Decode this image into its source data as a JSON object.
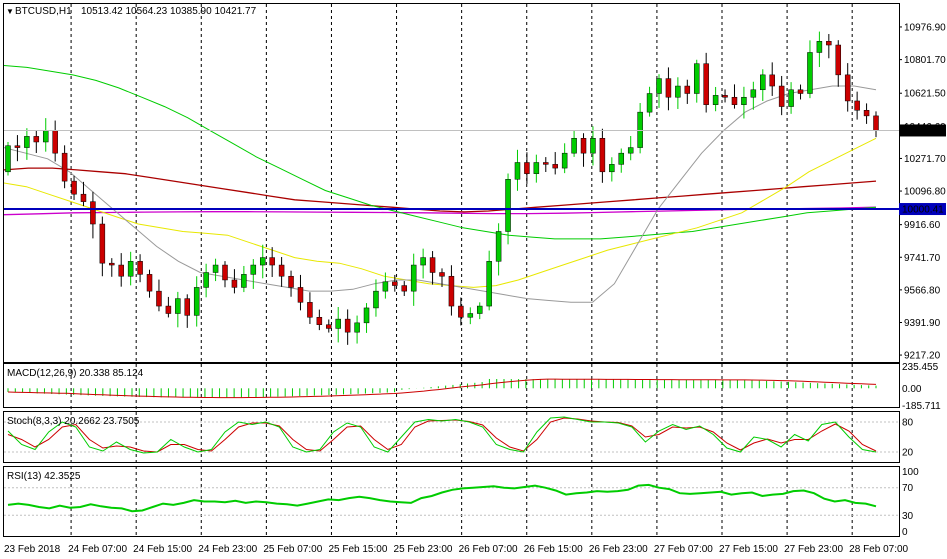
{
  "header": {
    "symbol": "BTCUSD,H1",
    "ohlc": "10513.42 10564.23 10385.90 10421.77",
    "arrow": "▼"
  },
  "chart_data": [
    {
      "type": "candlestick",
      "title": "BTCUSD,H1",
      "ylim": [
        9180,
        11100
      ],
      "price_ticks": [
        "10976.90",
        "10801.70",
        "10621.50",
        "10271.70",
        "10096.80",
        "9916.60",
        "9741.70",
        "9566.80",
        "9391.90",
        "9217.20"
      ],
      "price_tick_values": [
        10976.9,
        10801.7,
        10621.5,
        10271.7,
        10096.8,
        9916.6,
        9741.7,
        9566.8,
        9391.9,
        9217.2
      ],
      "clipped_tick": "10446.60",
      "current_price": "10421.77",
      "current_price_value": 10421.77,
      "level_label": "10000.41",
      "level_value": 10000.41,
      "x_labels": [
        "23 Feb 2018",
        "24 Feb 07:00",
        "24 Feb 15:00",
        "24 Feb 23:00",
        "25 Feb 07:00",
        "25 Feb 15:00",
        "25 Feb 23:00",
        "26 Feb 07:00",
        "26 Feb 15:00",
        "26 Feb 23:00",
        "27 Feb 07:00",
        "27 Feb 15:00",
        "27 Feb 23:00",
        "28 Feb 07:00"
      ],
      "bull_color": "#00cc00",
      "bear_color": "#cc0000",
      "closes": [
        10340,
        10330,
        10390,
        10360,
        10420,
        10300,
        10150,
        10080,
        10040,
        9920,
        9710,
        9700,
        9640,
        9720,
        9650,
        9560,
        9480,
        9440,
        9520,
        9430,
        9580,
        9660,
        9700,
        9620,
        9580,
        9650,
        9700,
        9740,
        9700,
        9640,
        9580,
        9500,
        9420,
        9380,
        9360,
        9410,
        9340,
        9390,
        9470,
        9560,
        9610,
        9590,
        9560,
        9700,
        9740,
        9660,
        9640,
        9480,
        9420,
        9440,
        9480,
        9720,
        9880,
        10160,
        10250,
        10190,
        10250,
        10240,
        10220,
        10300,
        10380,
        10300,
        10380,
        10200,
        10240,
        10300,
        10330,
        10520,
        10620,
        10700,
        10600,
        10660,
        10620,
        10780,
        10560,
        10610,
        10600,
        10560,
        10600,
        10640,
        10720,
        10660,
        10550,
        10640,
        10620,
        10840,
        10900,
        10880,
        10720,
        10580,
        10530,
        10500,
        10421.77
      ],
      "ma_gray": [
        10330,
        10300,
        10270,
        10200,
        10100,
        10000,
        9900,
        9800,
        9720,
        9660,
        9640,
        9620,
        9600,
        9580,
        9560,
        9560,
        9570,
        9600,
        9620,
        9620,
        9600,
        9580,
        9560,
        9540,
        9520,
        9510,
        9500,
        9500,
        9600,
        9800,
        10000,
        10150,
        10300,
        10420,
        10520,
        10580,
        10620,
        10640,
        10660,
        10660,
        10640
      ],
      "ma_yellow": [
        10140,
        10120,
        10080,
        10040,
        10000,
        9960,
        9920,
        9900,
        9880,
        9870,
        9860,
        9820,
        9780,
        9740,
        9720,
        9710,
        9680,
        9640,
        9620,
        9600,
        9590,
        9580,
        9590,
        9620,
        9660,
        9700,
        9740,
        9780,
        9810,
        9840,
        9870,
        9900,
        9940,
        9980,
        10050,
        10120,
        10200,
        10260,
        10320,
        10380
      ],
      "ma_green": [
        10770,
        10760,
        10740,
        10720,
        10690,
        10650,
        10600,
        10550,
        10490,
        10420,
        10350,
        10280,
        10220,
        10160,
        10100,
        10060,
        10020,
        9990,
        9960,
        9930,
        9900,
        9880,
        9860,
        9850,
        9840,
        9840,
        9840,
        9850,
        9860,
        9870,
        9880,
        9900,
        9920,
        9940,
        9960,
        9980,
        9990,
        10000,
        10010
      ],
      "ma_red": [
        10210,
        10220,
        10220,
        10210,
        10200,
        10190,
        10170,
        10150,
        10130,
        10110,
        10090,
        10070,
        10050,
        10040,
        10030,
        10020,
        10010,
        10000,
        9990,
        9985,
        9990,
        10000,
        10010,
        10020,
        10030,
        10040,
        10050,
        10060,
        10070,
        10080,
        10090,
        10100,
        10110,
        10120,
        10130,
        10140,
        10150
      ],
      "ma_magenta": [
        9970,
        9975,
        9980,
        9982,
        9984,
        9985,
        9986,
        9986,
        9985,
        9984,
        9983,
        9982,
        9980,
        9978,
        9976,
        9976,
        9978,
        9982,
        9986,
        9990,
        9994,
        9998,
        10000,
        10003,
        10006,
        10010
      ]
    },
    {
      "type": "bar",
      "title": "MACD(12,26,9) 20.338 85.124",
      "ylim": [
        -200,
        260
      ],
      "ticks": [
        "235.455",
        "0.00",
        "-185.711"
      ],
      "tick_values": [
        235.455,
        0,
        -185.711
      ],
      "bar_color": "#00cc00",
      "signal_color": "#cc0000"
    },
    {
      "type": "line",
      "title": "Stoch(8,3,3) 20.2662 23.7505",
      "ylim": [
        0,
        100
      ],
      "ticks": [
        "80",
        "20"
      ],
      "tick_values": [
        80,
        20
      ],
      "main_color": "#00cc00",
      "signal_color": "#cc0000",
      "main": [
        62,
        35,
        25,
        60,
        80,
        70,
        30,
        22,
        40,
        25,
        18,
        20,
        45,
        30,
        20,
        25,
        60,
        80,
        75,
        80,
        70,
        30,
        20,
        25,
        60,
        78,
        70,
        30,
        20,
        50,
        80,
        85,
        82,
        85,
        80,
        70,
        35,
        25,
        20,
        60,
        88,
        90,
        85,
        80,
        80,
        78,
        70,
        40,
        62,
        75,
        65,
        72,
        55,
        28,
        20,
        50,
        45,
        30,
        55,
        42,
        75,
        80,
        50,
        25,
        20
      ],
      "signal": [
        55,
        45,
        30,
        45,
        70,
        75,
        45,
        28,
        32,
        30,
        22,
        20,
        35,
        35,
        25,
        22,
        45,
        70,
        78,
        78,
        72,
        45,
        25,
        22,
        45,
        70,
        72,
        45,
        25,
        35,
        70,
        82,
        83,
        84,
        81,
        74,
        48,
        30,
        22,
        45,
        80,
        88,
        86,
        82,
        80,
        79,
        72,
        50,
        55,
        70,
        68,
        70,
        60,
        38,
        24,
        38,
        46,
        38,
        45,
        45,
        62,
        76,
        62,
        35,
        22
      ]
    },
    {
      "type": "line",
      "title": "RSI(13) 42.3525",
      "ylim": [
        0,
        100
      ],
      "ticks": [
        "100",
        "70",
        "30",
        "0"
      ],
      "tick_values": [
        100,
        70,
        30,
        0
      ],
      "line_color": "#00cc00",
      "values": [
        45,
        47,
        45,
        42,
        40,
        44,
        41,
        42,
        46,
        43,
        41,
        40,
        36,
        37,
        42,
        47,
        45,
        48,
        52,
        50,
        50,
        49,
        51,
        48,
        50,
        49,
        47,
        46,
        44,
        47,
        50,
        53,
        52,
        55,
        57,
        55,
        52,
        50,
        49,
        48,
        55,
        58,
        63,
        67,
        69,
        70,
        71,
        72,
        70,
        69,
        71,
        73,
        70,
        66,
        60,
        62,
        63,
        65,
        64,
        65,
        67,
        73,
        74,
        70,
        68,
        62,
        61,
        62,
        63,
        64,
        60,
        62,
        63,
        58,
        60,
        61,
        65,
        66,
        62,
        54,
        50,
        52,
        48,
        47,
        43
      ]
    }
  ]
}
